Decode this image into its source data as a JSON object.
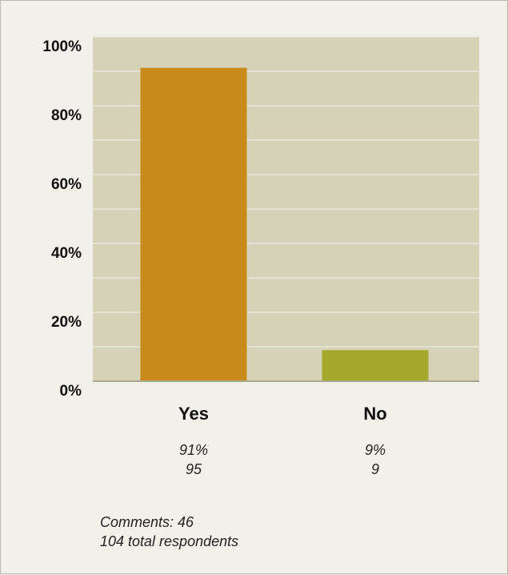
{
  "chart_data": {
    "type": "bar",
    "categories": [
      "Yes",
      "No"
    ],
    "values": [
      91,
      9
    ],
    "counts": [
      95,
      9
    ],
    "value_labels": [
      "91%",
      "9%"
    ],
    "count_labels": [
      "95",
      "9"
    ],
    "yticks": [
      "0%",
      "20%",
      "40%",
      "60%",
      "80%",
      "100%"
    ],
    "ylim": [
      0,
      100
    ],
    "grid": true,
    "colors": [
      "#c88a18",
      "#a4a82a"
    ],
    "plot_background": "#d5d2b8",
    "gridline_color": "#ecebe0"
  },
  "footer": {
    "comments": "Comments: 46",
    "total": "104 total respondents"
  }
}
